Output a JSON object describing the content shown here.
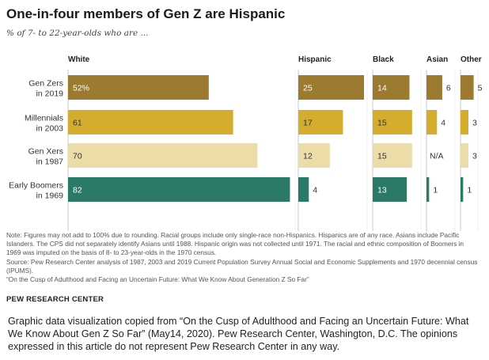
{
  "title": "One-in-four members of Gen Z are Hispanic",
  "subtitle": "% of 7- to 22-year-olds who are ...",
  "chart_data": {
    "type": "bar",
    "orientation": "horizontal",
    "layout": "small-multiples",
    "categories": [
      [
        "Gen Zers",
        "in 2019"
      ],
      [
        "Millennials",
        "in 2003"
      ],
      [
        "Gen Xers",
        "in 1987"
      ],
      [
        "Early Boomers",
        "in 1969"
      ]
    ],
    "series": [
      {
        "name": "White",
        "values": [
          52,
          61,
          70,
          82
        ],
        "labels": [
          "52%",
          "61",
          "70",
          "82"
        ]
      },
      {
        "name": "Hispanic",
        "values": [
          25,
          17,
          12,
          4
        ],
        "labels": [
          "25",
          "17",
          "12",
          "4"
        ]
      },
      {
        "name": "Black",
        "values": [
          14,
          15,
          15,
          13
        ],
        "labels": [
          "14",
          "15",
          "15",
          "13"
        ]
      },
      {
        "name": "Asian",
        "values": [
          6,
          4,
          null,
          1
        ],
        "labels": [
          "6",
          "4",
          "N/A",
          "1"
        ]
      },
      {
        "name": "Other",
        "values": [
          5,
          3,
          3,
          1
        ],
        "labels": [
          "5",
          "3",
          "3",
          "1"
        ]
      }
    ],
    "row_colors": [
      "#9c7a2f",
      "#d4ac2e",
      "#ecdca8",
      "#2b7a68"
    ],
    "label_colors": [
      "#ffffff",
      "#333333",
      "#333333",
      "#ffffff"
    ]
  },
  "notes": [
    "Note: Figures may not add to 100% due to rounding. Racial groups include only single-race non-Hispanics. Hispanics are of any race. Asians include Pacific Islanders. The CPS did not separately identify Asians until 1988. Hispanic origin was not collected until 1971. The racial and ethnic composition of Boomers in 1969 was imputed on the basis of 8- to 23-year-olds in the 1970 census.",
    "Source: Pew Research Center analysis of 1987, 2003 and 2019 Current Population Survey Annual Social and Economic Supplements and 1970 decennial census (IPUMS).",
    "“On the Cusp of Adulthood and Facing an Uncertain Future: What We Know About Generation Z So Far”"
  ],
  "source_brand": "PEW RESEARCH CENTER",
  "caption": "Graphic data visualization copied from “On the Cusp of Adulthood and Facing an Uncertain Future: What We Know About Gen Z So Far” (May14, 2020). Pew Research Center, Washington, D.C. The opinions expressed in this article do not represent Pew Research Center in any way."
}
